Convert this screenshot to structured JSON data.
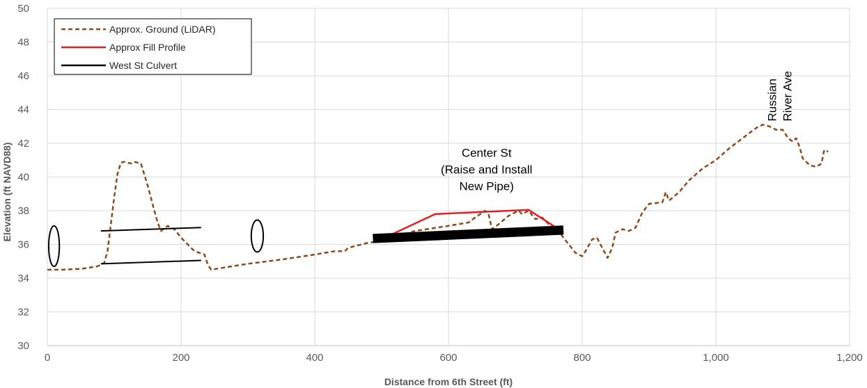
{
  "chart_data": {
    "type": "line",
    "title": "",
    "xlabel": "Distance from 6th Street (ft)",
    "ylabel": "Elevation (ft NAVD88)",
    "xlim": [
      0,
      1200
    ],
    "ylim": [
      30,
      50
    ],
    "x_ticks": [
      0,
      200,
      400,
      600,
      800,
      1000,
      1200
    ],
    "x_tick_labels": [
      "0",
      "200",
      "400",
      "600",
      "800",
      "1,000",
      "1,200"
    ],
    "y_ticks": [
      30,
      32,
      34,
      36,
      38,
      40,
      42,
      44,
      46,
      48,
      50
    ],
    "y_tick_labels": [
      "30",
      "32",
      "34",
      "36",
      "38",
      "40",
      "42",
      "44",
      "46",
      "48",
      "50"
    ],
    "grid": true,
    "legend": {
      "placement": "top-left",
      "entries": [
        "Approx. Ground (LiDAR)",
        "Approx Fill Profile",
        "West St Culvert"
      ]
    },
    "series": [
      {
        "name": "Approx. Ground (LiDAR)",
        "color": "#8B4A1C",
        "style": "dashed",
        "points": [
          [
            0,
            34.5
          ],
          [
            20,
            34.5
          ],
          [
            50,
            34.55
          ],
          [
            75,
            34.7
          ],
          [
            85,
            34.9
          ],
          [
            90,
            35.6
          ],
          [
            95,
            37.2
          ],
          [
            100,
            38.8
          ],
          [
            105,
            40.2
          ],
          [
            110,
            40.85
          ],
          [
            115,
            40.9
          ],
          [
            125,
            40.8
          ],
          [
            130,
            40.9
          ],
          [
            140,
            40.8
          ],
          [
            150,
            39.5
          ],
          [
            160,
            38.0
          ],
          [
            165,
            37.3
          ],
          [
            170,
            36.8
          ],
          [
            180,
            37.1
          ],
          [
            190,
            36.9
          ],
          [
            200,
            36.4
          ],
          [
            210,
            36.0
          ],
          [
            220,
            35.6
          ],
          [
            235,
            35.4
          ],
          [
            240,
            34.8
          ],
          [
            245,
            34.5
          ],
          [
            260,
            34.6
          ],
          [
            300,
            34.85
          ],
          [
            350,
            35.1
          ],
          [
            400,
            35.4
          ],
          [
            430,
            35.6
          ],
          [
            445,
            35.6
          ],
          [
            450,
            35.8
          ],
          [
            470,
            36.0
          ],
          [
            480,
            36.1
          ],
          [
            500,
            36.2
          ],
          [
            550,
            36.8
          ],
          [
            600,
            37.1
          ],
          [
            630,
            37.3
          ],
          [
            640,
            37.6
          ],
          [
            655,
            38.0
          ],
          [
            660,
            37.8
          ],
          [
            665,
            36.9
          ],
          [
            675,
            37.2
          ],
          [
            690,
            37.7
          ],
          [
            705,
            38.0
          ],
          [
            710,
            37.8
          ],
          [
            720,
            38.0
          ],
          [
            730,
            37.5
          ],
          [
            740,
            37.6
          ],
          [
            750,
            37.2
          ],
          [
            765,
            36.9
          ],
          [
            770,
            36.5
          ],
          [
            780,
            36.0
          ],
          [
            790,
            35.5
          ],
          [
            800,
            35.3
          ],
          [
            805,
            35.6
          ],
          [
            815,
            36.3
          ],
          [
            822,
            36.4
          ],
          [
            830,
            35.8
          ],
          [
            838,
            35.2
          ],
          [
            845,
            35.8
          ],
          [
            850,
            36.7
          ],
          [
            860,
            36.9
          ],
          [
            870,
            36.8
          ],
          [
            880,
            37.0
          ],
          [
            890,
            37.9
          ],
          [
            900,
            38.4
          ],
          [
            920,
            38.5
          ],
          [
            925,
            39.1
          ],
          [
            930,
            38.6
          ],
          [
            945,
            39.1
          ],
          [
            960,
            39.8
          ],
          [
            980,
            40.5
          ],
          [
            1000,
            41.0
          ],
          [
            1020,
            41.7
          ],
          [
            1040,
            42.3
          ],
          [
            1060,
            42.9
          ],
          [
            1070,
            43.1
          ],
          [
            1080,
            43.0
          ],
          [
            1090,
            42.8
          ],
          [
            1100,
            42.8
          ],
          [
            1108,
            42.3
          ],
          [
            1115,
            42.1
          ],
          [
            1120,
            42.3
          ],
          [
            1125,
            41.8
          ],
          [
            1130,
            41.1
          ],
          [
            1140,
            40.7
          ],
          [
            1150,
            40.6
          ],
          [
            1158,
            40.8
          ],
          [
            1162,
            41.6
          ],
          [
            1168,
            41.5
          ]
        ]
      },
      {
        "name": "Approx Fill Profile",
        "color": "#E02020",
        "style": "solid",
        "points": [
          [
            510,
            36.5
          ],
          [
            580,
            37.8
          ],
          [
            720,
            38.05
          ],
          [
            765,
            36.9
          ]
        ]
      },
      {
        "name": "West St Culvert",
        "color": "#000000",
        "style": "solid",
        "segments": [
          [
            [
              80,
              36.8
            ],
            [
              230,
              37.0
            ]
          ],
          [
            [
              80,
              34.85
            ],
            [
              230,
              35.05
            ]
          ]
        ]
      }
    ],
    "pipe": {
      "color": "#000000",
      "points": [
        [
          487,
          36.35
        ],
        [
          772,
          36.85
        ]
      ],
      "thickness_ft": 0.55
    },
    "ellipses": [
      {
        "center": [
          10,
          35.9
        ],
        "radius_x_ft": 8,
        "radius_y_ft": 1.2
      },
      {
        "center": [
          314,
          36.5
        ],
        "radius_x_ft": 9,
        "radius_y_ft": 0.95
      }
    ],
    "annotations": [
      {
        "lines": [
          "Center St",
          "(Raise and Install",
          "New Pipe)"
        ],
        "x": 657,
        "y": 41.2,
        "rotated": false
      },
      {
        "lines": [
          "Russian",
          "River Ave"
        ],
        "x": 1090,
        "y": 43.3,
        "rotated": true
      }
    ]
  }
}
